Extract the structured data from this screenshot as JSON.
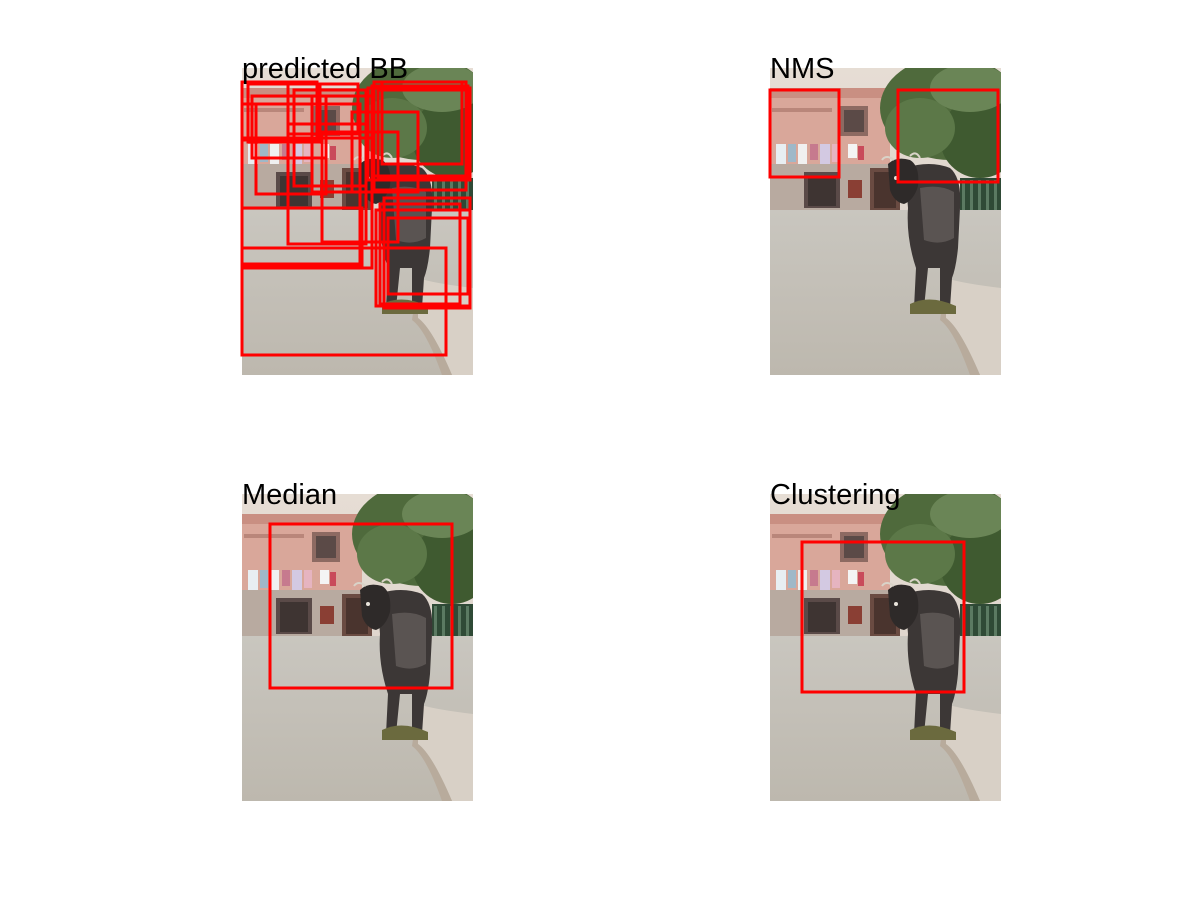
{
  "colors": {
    "background": "#ffffff",
    "box_stroke": "#ff0000",
    "title_text": "#000000"
  },
  "panels": [
    {
      "title": "predicted BB",
      "box_count": 23
    },
    {
      "title": "NMS",
      "box_count": 2
    },
    {
      "title": "Median",
      "box_count": 1
    },
    {
      "title": "Clustering",
      "box_count": 1
    }
  ]
}
